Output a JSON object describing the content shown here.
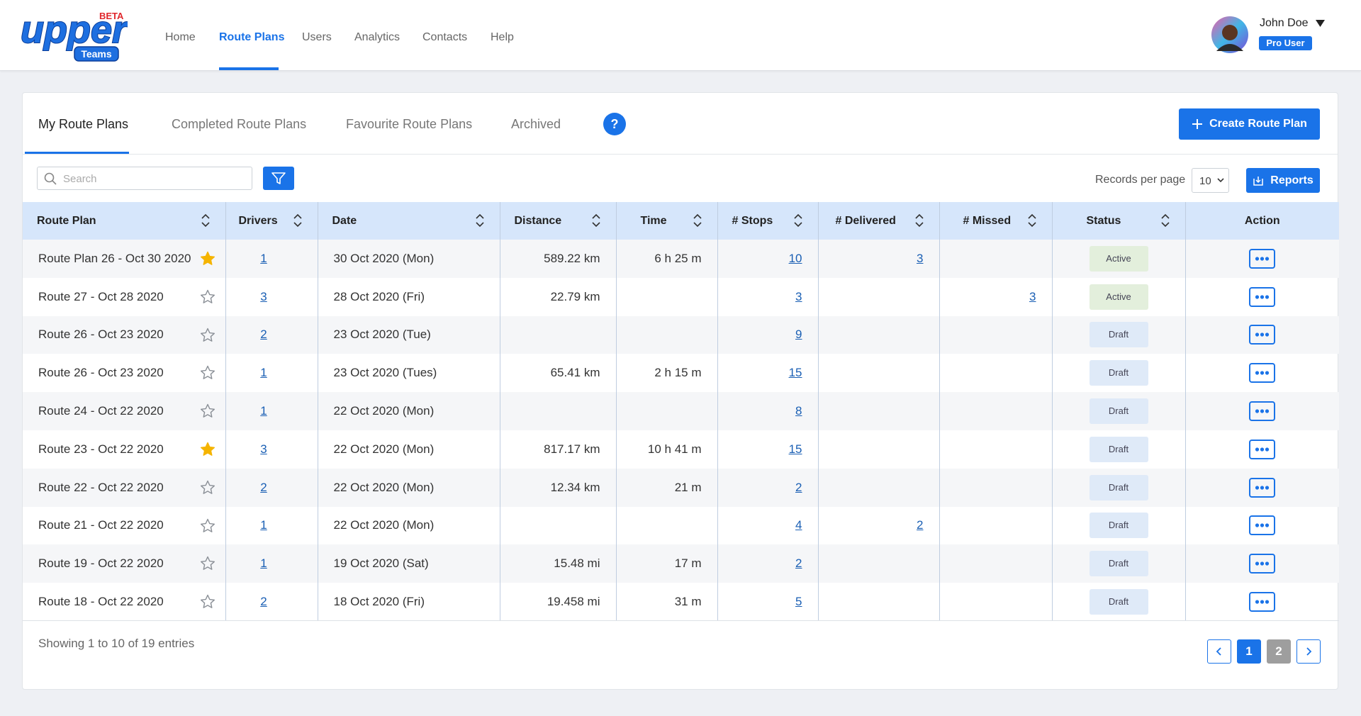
{
  "header": {
    "logo": {
      "brand": "upper",
      "badge": "BETA",
      "sub": "Teams"
    },
    "nav": [
      "Home",
      "Route Plans",
      "Users",
      "Analytics",
      "Contacts",
      "Help"
    ],
    "active_nav": 1,
    "user": {
      "name": "John Doe",
      "role": "Pro User"
    }
  },
  "tabs": {
    "items": [
      "My Route Plans",
      "Completed Route Plans",
      "Favourite Route Plans",
      "Archived"
    ],
    "active": 0,
    "help": "?",
    "create_button": "Create Route Plan"
  },
  "toolbar": {
    "search_placeholder": "Search",
    "records_label": "Records per page",
    "records_value": "10",
    "reports_button": "Reports"
  },
  "table": {
    "columns": [
      {
        "label": "Route Plan",
        "sortable": true
      },
      {
        "label": "Drivers",
        "sortable": true
      },
      {
        "label": "Date",
        "sortable": true
      },
      {
        "label": "Distance",
        "sortable": true
      },
      {
        "label": "Time",
        "sortable": true
      },
      {
        "label": "# Stops",
        "sortable": true
      },
      {
        "label": "# Delivered",
        "sortable": true
      },
      {
        "label": "# Missed",
        "sortable": true
      },
      {
        "label": "Status",
        "sortable": true
      },
      {
        "label": "Action",
        "sortable": false
      }
    ],
    "rows": [
      {
        "favourite": true,
        "status_color": "#e3efdc",
        "cells": [
          "Route Plan 26 - Oct 30 2020",
          1,
          "30 Oct 2020 (Mon)",
          "589.22 km",
          "6 h 25 m",
          10,
          3,
          null,
          "Active"
        ]
      },
      {
        "favourite": false,
        "status_color": "#e3efdc",
        "cells": [
          "Route 27 - Oct 28 2020",
          3,
          "28 Oct 2020 (Fri)",
          "22.79 km",
          null,
          3,
          null,
          3,
          "Active"
        ]
      },
      {
        "favourite": false,
        "status_color": "#dfeaf8",
        "cells": [
          "Route 26 - Oct 23 2020",
          2,
          "23 Oct 2020 (Tue)",
          null,
          null,
          9,
          null,
          null,
          "Draft"
        ]
      },
      {
        "favourite": false,
        "status_color": "#dfeaf8",
        "cells": [
          "Route 26 - Oct 23 2020",
          1,
          "23 Oct 2020 (Tues)",
          "65.41 km",
          "2 h 15 m",
          15,
          null,
          null,
          "Draft"
        ]
      },
      {
        "favourite": false,
        "status_color": "#dfeaf8",
        "cells": [
          "Route 24 - Oct 22 2020",
          1,
          "22 Oct 2020 (Mon)",
          null,
          null,
          8,
          null,
          null,
          "Draft"
        ]
      },
      {
        "favourite": true,
        "status_color": "#dfeaf8",
        "cells": [
          "Route 23 - Oct 22 2020",
          3,
          "22 Oct 2020 (Mon)",
          "817.17 km",
          "10 h 41 m",
          15,
          null,
          null,
          "Draft"
        ]
      },
      {
        "favourite": false,
        "status_color": "#dfeaf8",
        "cells": [
          "Route 22 - Oct 22 2020",
          2,
          "22 Oct 2020 (Mon)",
          "12.34 km",
          "21 m",
          2,
          null,
          null,
          "Draft"
        ]
      },
      {
        "favourite": false,
        "status_color": "#dfeaf8",
        "cells": [
          "Route 21 - Oct 22 2020",
          1,
          "22 Oct 2020 (Mon)",
          null,
          null,
          4,
          2,
          null,
          "Draft"
        ]
      },
      {
        "favourite": false,
        "status_color": "#dfeaf8",
        "cells": [
          "Route 19 - Oct 22 2020",
          1,
          "19 Oct 2020 (Sat)",
          "15.48 mi",
          "17 m",
          2,
          null,
          null,
          "Draft"
        ]
      },
      {
        "favourite": false,
        "status_color": "#dfeaf8",
        "cells": [
          "Route 18 - Oct 22 2020",
          2,
          "18 Oct 2020 (Fri)",
          "19.458 mi",
          "31 m",
          5,
          null,
          null,
          "Draft"
        ]
      }
    ]
  },
  "footer": {
    "summary": "Showing 1 to 10 of 19 entries",
    "pages": [
      1,
      2
    ],
    "current_page": 1
  }
}
